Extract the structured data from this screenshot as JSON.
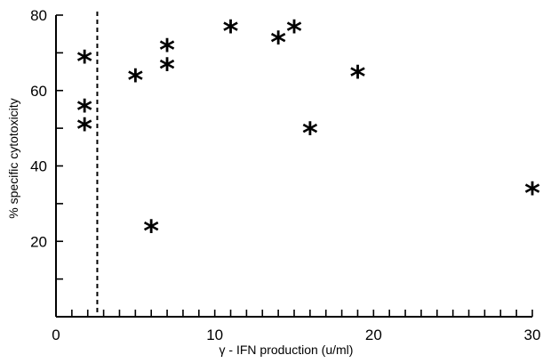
{
  "chart_data": {
    "type": "scatter",
    "xlabel": "γ - IFN production (u/ml)",
    "ylabel": "% specific cytotoxicity",
    "xlim": [
      0,
      30
    ],
    "ylim": [
      0,
      80
    ],
    "x_ticks": [
      0,
      10,
      20,
      30
    ],
    "y_ticks": [
      20,
      40,
      60,
      80
    ],
    "x_minor_step": 1,
    "y_minor_step": 10,
    "marker_symbol": "*",
    "cutoff_line": {
      "x": 2.6,
      "style": "dashed"
    },
    "points": [
      {
        "x": 1.8,
        "y": 68
      },
      {
        "x": 1.8,
        "y": 55
      },
      {
        "x": 1.8,
        "y": 50
      },
      {
        "x": 5.0,
        "y": 63
      },
      {
        "x": 6.0,
        "y": 23
      },
      {
        "x": 7.0,
        "y": 66
      },
      {
        "x": 7.0,
        "y": 71
      },
      {
        "x": 11.0,
        "y": 76
      },
      {
        "x": 14.0,
        "y": 73
      },
      {
        "x": 15.0,
        "y": 76
      },
      {
        "x": 16.0,
        "y": 49
      },
      {
        "x": 19.0,
        "y": 64
      },
      {
        "x": 30.0,
        "y": 33
      }
    ]
  }
}
